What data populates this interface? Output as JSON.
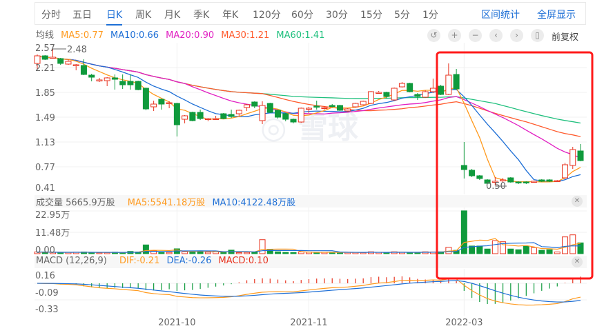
{
  "tabs": [
    {
      "label": "分时"
    },
    {
      "label": "五日"
    },
    {
      "label": "日K",
      "active": true
    },
    {
      "label": "周K"
    },
    {
      "label": "月K"
    },
    {
      "label": "季K"
    },
    {
      "label": "年K"
    },
    {
      "label": "120分"
    },
    {
      "label": "60分"
    },
    {
      "label": "30分"
    },
    {
      "label": "15分"
    },
    {
      "label": "5分"
    },
    {
      "label": "1分"
    }
  ],
  "links": {
    "range_stats": "区间统计",
    "fullscreen": "全屏显示"
  },
  "ma_legend": {
    "title": "均线",
    "ma5": "MA5:0.77",
    "ma10": "MA10:0.66",
    "ma20": "MA20:0.90",
    "ma30": "MA30:1.21",
    "ma60": "MA60:1.41"
  },
  "toolbar": {
    "icons": [
      "undo-icon",
      "zoom-in-icon",
      "zoom-out-icon",
      "chevron-left-icon",
      "chevron-right-icon",
      "candle-icon"
    ],
    "adjust": "前复权"
  },
  "volume_legend": {
    "title": "成交量 5665.9万股",
    "ma5": "MA5:5541.18万股",
    "ma10": "MA10:4122.48万股"
  },
  "macd_legend": {
    "title": "MACD (12,26,9)",
    "dif": "DIF:-0.21",
    "dea": "DEA:-0.26",
    "macd": "MACD:0.10"
  },
  "watermark": "雪球",
  "colors": {
    "up": "#e8321e",
    "down": "#0f9a3c",
    "ma5": "#ff9a1e",
    "ma10": "#1e6fd6",
    "ma20": "#e11fc2",
    "ma30": "#ff5a2c",
    "ma60": "#20c07e",
    "accent": "#1d6fd6",
    "highlight_box": "#ff1a1a"
  },
  "chart_data": {
    "type": "candlestick",
    "price_axis": {
      "ticks": [
        "2.57",
        "2.21",
        "1.85",
        "1.49",
        "1.13",
        "0.77",
        "0.41"
      ],
      "ylim": [
        0.41,
        2.57
      ]
    },
    "high_label": "2.48",
    "low_label": "0.50",
    "volume_axis": {
      "ticks": [
        "22.95万",
        "11.48万",
        "0.00"
      ],
      "ylim": [
        0,
        22.95
      ]
    },
    "macd_axis": {
      "ticks": [
        "0.16",
        "-0.09",
        "-0.33"
      ]
    },
    "date_labels": [
      {
        "index": 18,
        "label": "2021-10"
      },
      {
        "index": 35,
        "label": "2021-11"
      },
      {
        "index": 55,
        "label": "2022-03"
      }
    ],
    "candles_ohlcv": [
      [
        2.27,
        2.4,
        2.19,
        2.38,
        0.9
      ],
      [
        2.38,
        2.39,
        2.32,
        2.33,
        0.8
      ],
      [
        2.35,
        2.48,
        2.34,
        2.36,
        0.7
      ],
      [
        2.34,
        2.35,
        2.25,
        2.27,
        0.6
      ],
      [
        2.26,
        2.33,
        2.25,
        2.3,
        0.7
      ],
      [
        2.24,
        2.26,
        2.17,
        2.25,
        0.8
      ],
      [
        2.24,
        2.33,
        2.1,
        2.11,
        0.9
      ],
      [
        2.1,
        2.12,
        2.01,
        2.07,
        0.6
      ],
      [
        2.02,
        2.06,
        2.0,
        2.03,
        0.5
      ],
      [
        2.02,
        2.07,
        1.94,
        2.06,
        0.6
      ],
      [
        2.06,
        2.11,
        1.89,
        2.04,
        0.8
      ],
      [
        2.01,
        2.11,
        1.9,
        1.96,
        0.7
      ],
      [
        2.01,
        2.11,
        1.89,
        1.96,
        1.2
      ],
      [
        2.01,
        2.02,
        1.88,
        1.89,
        0.9
      ],
      [
        1.91,
        1.92,
        1.59,
        1.61,
        4.7
      ],
      [
        1.64,
        1.73,
        1.58,
        1.68,
        1.5
      ],
      [
        1.75,
        1.76,
        1.6,
        1.68,
        0.6
      ],
      [
        1.69,
        1.72,
        1.62,
        1.7,
        0.7
      ],
      [
        1.69,
        1.7,
        1.21,
        1.38,
        2.6
      ],
      [
        1.46,
        1.52,
        1.4,
        1.51,
        1.0
      ],
      [
        1.56,
        1.57,
        1.43,
        1.44,
        0.8
      ],
      [
        1.56,
        1.6,
        1.45,
        1.47,
        1.3
      ],
      [
        1.46,
        1.48,
        1.43,
        1.47,
        0.8
      ],
      [
        1.46,
        1.51,
        1.45,
        1.47,
        0.9
      ],
      [
        1.54,
        1.55,
        1.46,
        1.47,
        0.7
      ],
      [
        1.53,
        1.6,
        1.48,
        1.5,
        1.9
      ],
      [
        1.54,
        1.6,
        1.5,
        1.59,
        0.6
      ],
      [
        1.63,
        1.68,
        1.58,
        1.67,
        0.7
      ],
      [
        1.71,
        1.72,
        1.62,
        1.65,
        0.8
      ],
      [
        1.44,
        1.72,
        1.39,
        1.66,
        7.5
      ],
      [
        1.69,
        1.7,
        1.55,
        1.56,
        2.3
      ],
      [
        1.59,
        1.6,
        1.47,
        1.49,
        1.0
      ],
      [
        1.54,
        1.55,
        1.43,
        1.46,
        0.7
      ],
      [
        1.46,
        1.47,
        1.4,
        1.42,
        0.6
      ],
      [
        1.42,
        1.63,
        1.41,
        1.62,
        0.9
      ],
      [
        1.61,
        1.64,
        1.55,
        1.62,
        0.8
      ],
      [
        1.65,
        1.73,
        1.6,
        1.64,
        0.6
      ],
      [
        1.62,
        1.65,
        1.6,
        1.63,
        0.7
      ],
      [
        1.66,
        1.68,
        1.63,
        1.65,
        0.6
      ],
      [
        1.66,
        1.67,
        1.58,
        1.59,
        0.7
      ],
      [
        1.58,
        1.62,
        1.57,
        1.61,
        0.8
      ],
      [
        1.64,
        1.7,
        1.63,
        1.69,
        0.7
      ],
      [
        1.67,
        1.73,
        1.66,
        1.72,
        0.6
      ],
      [
        1.69,
        1.87,
        1.68,
        1.86,
        1.0
      ],
      [
        1.84,
        1.87,
        1.83,
        1.85,
        0.7
      ],
      [
        1.85,
        1.86,
        1.76,
        1.79,
        0.6
      ],
      [
        1.74,
        1.92,
        1.73,
        1.91,
        1.0
      ],
      [
        1.93,
        2.0,
        1.92,
        1.98,
        0.7
      ],
      [
        1.98,
        1.99,
        1.85,
        1.86,
        0.6
      ],
      [
        1.82,
        1.84,
        1.74,
        1.79,
        0.6
      ],
      [
        1.78,
        1.88,
        1.77,
        1.86,
        1.0
      ],
      [
        1.86,
        2.05,
        1.84,
        1.91,
        0.9
      ],
      [
        1.94,
        1.96,
        1.81,
        1.82,
        1.0
      ],
      [
        1.82,
        2.27,
        1.81,
        2.1,
        3.4
      ],
      [
        2.11,
        2.19,
        1.89,
        1.9,
        1.8
      ],
      [
        0.79,
        1.13,
        0.6,
        0.73,
        23.0
      ],
      [
        0.72,
        0.74,
        0.62,
        0.64,
        4.1
      ],
      [
        0.64,
        0.65,
        0.58,
        0.6,
        4.1
      ],
      [
        0.58,
        0.59,
        0.52,
        0.53,
        2.5
      ],
      [
        0.55,
        0.62,
        0.5,
        0.56,
        7.0
      ],
      [
        0.57,
        0.61,
        0.54,
        0.58,
        6.4
      ],
      [
        0.61,
        0.62,
        0.54,
        0.55,
        2.5
      ],
      [
        0.55,
        0.56,
        0.52,
        0.54,
        2.1
      ],
      [
        0.55,
        0.56,
        0.52,
        0.54,
        3.9
      ],
      [
        0.55,
        0.57,
        0.54,
        0.56,
        3.3
      ],
      [
        0.58,
        0.59,
        0.55,
        0.56,
        1.8
      ],
      [
        0.58,
        0.59,
        0.55,
        0.56,
        2.1
      ],
      [
        0.56,
        0.58,
        0.55,
        0.57,
        0.9
      ],
      [
        0.61,
        0.83,
        0.59,
        0.8,
        9.0
      ],
      [
        0.79,
        1.06,
        0.74,
        1.02,
        10.1
      ],
      [
        1.0,
        1.1,
        0.85,
        0.86,
        5.8
      ]
    ]
  }
}
